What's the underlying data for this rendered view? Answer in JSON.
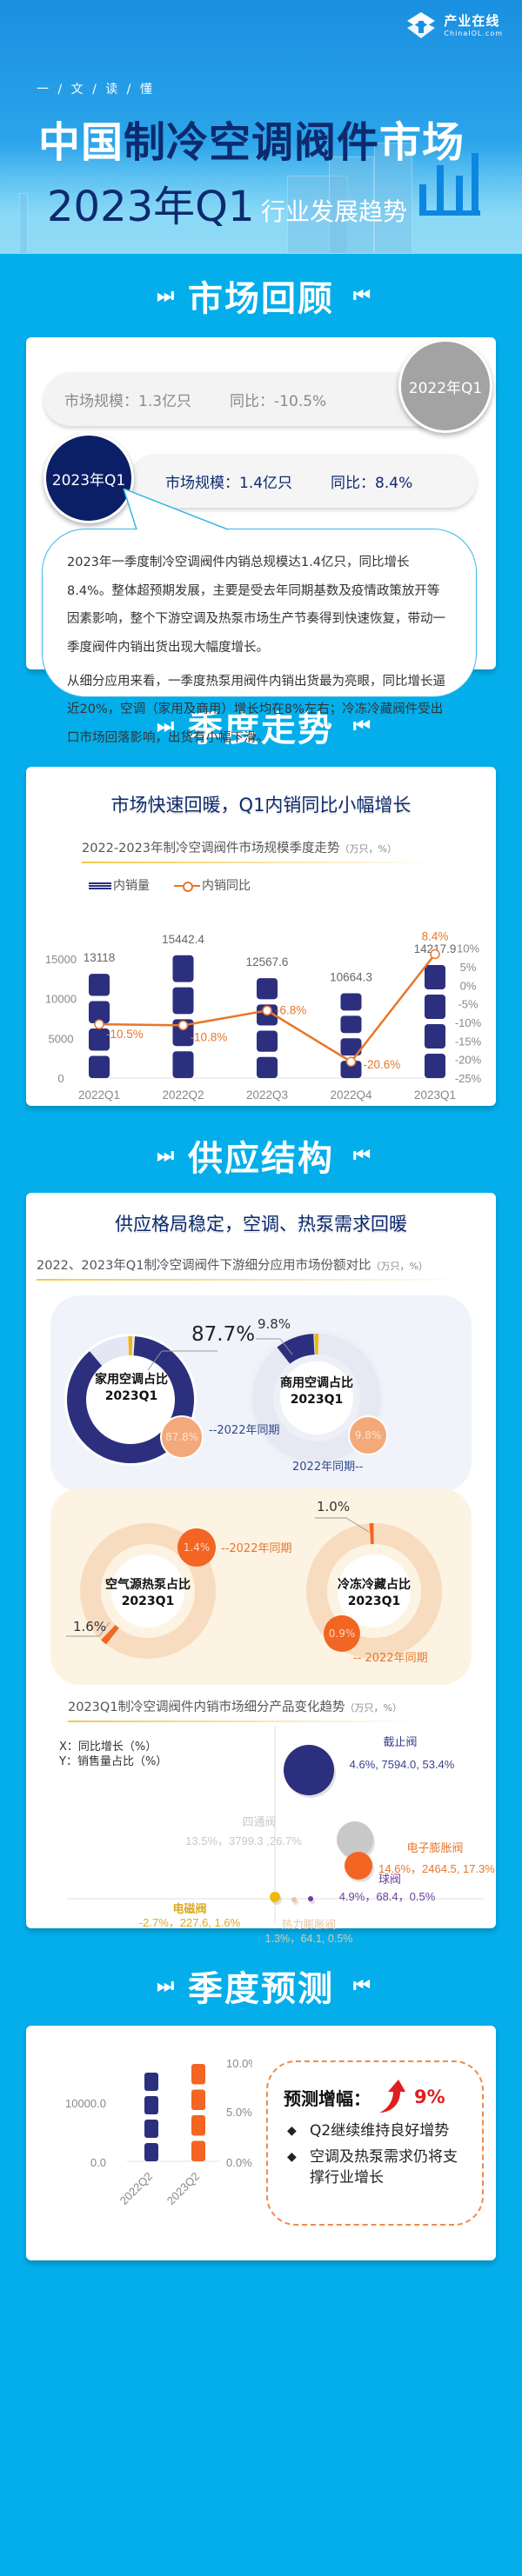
{
  "header": {
    "logo_cn": "产业在线",
    "logo_en": "ChinaIOL.com",
    "kicker": "一 / 文 / 读 / 懂",
    "title_prefix": "中国",
    "title_highlight": "制冷空调阀件",
    "title_suffix": "市场",
    "title_line2": "2023年Q1",
    "title_line2_sub": "行业发展趋势"
  },
  "sections": {
    "review": "市场回顾",
    "quarterly": "季度走势",
    "supply": "供应结构",
    "forecast": "季度预测",
    "arrow_left": "⏭",
    "arrow_right": "⏮"
  },
  "review": {
    "prev": {
      "badge": "2022年Q1",
      "size_label": "市场规模：1.3亿只",
      "yoy_label": "同比：-10.5%"
    },
    "curr": {
      "badge": "2023年Q1",
      "size_label": "市场规模：1.4亿只",
      "yoy_label": "同比：8.4%"
    },
    "paragraphs": [
      "2023年一季度制冷空调阀件内销总规模达1.4亿只，同比增长8.4%。整体超预期发展，主要是受去年同期基数及疫情政策放开等因素影响，整个下游空调及热泵市场生产节奏得到快速恢复，带动一季度阀件内销出货出现大幅度增长。",
      "从细分应用来看，一季度热泵用阀件内销出货最为亮眼，同比增长逼近20%，空调（家用及商用）增长均在8%左右；冷冻冷藏阀件受出口市场回落影响，出货有小幅下滑。"
    ]
  },
  "quarterly": {
    "subtitle": "市场快速回暖，Q1内销同比小幅增长",
    "chart_title": "2022-2023年制冷空调阀件市场规模季度走势",
    "chart_unit": "（万只，%）",
    "legend_bar": "内销量",
    "legend_line": "内销同比"
  },
  "supply": {
    "subtitle": "供应格局稳定，空调、热泵需求回暖",
    "share_title": "2022、2023年Q1制冷空调阀件下游细分应用市场份额对比",
    "share_unit": "（万只，%）",
    "prev_label_right": "--2022年同期",
    "prev_label_left": "2022年同期--",
    "prev_label_right2": "-- 2022年同期",
    "donuts": [
      {
        "name": "家用空调占比",
        "period": "2023Q1",
        "value": "87.7%",
        "prev": "87.8%"
      },
      {
        "name": "商用空调占比",
        "period": "2023Q1",
        "value": "9.8%",
        "prev": "9.8%"
      },
      {
        "name": "空气源热泵占比",
        "period": "2023Q1",
        "value": "1.6%",
        "prev": "1.4%"
      },
      {
        "name": "冷冻冷藏占比",
        "period": "2023Q1",
        "value": "1.0%",
        "prev": "0.9%"
      }
    ],
    "scatter_title": "2023Q1制冷空调阀件内销市场细分产品变化趋势",
    "scatter_unit": "（万只，%）",
    "axis_x": "X：同比增长（%）",
    "axis_y": "Y：销售量占比（%）",
    "products": [
      {
        "name": "截止阀",
        "label": "4.6%, 7594.0, 53.4%",
        "color": "#2c2f7e"
      },
      {
        "name": "四通阀",
        "label": "13.5%，3799.3 ,26.7%",
        "color": "#c8c8c8"
      },
      {
        "name": "电子膨胀阀",
        "label": "14.6%，2464.5, 17.3%",
        "color": "#f26522"
      },
      {
        "name": "球阀",
        "label": "4.9%，68.4，0.5%",
        "color": "#6a3fa0"
      },
      {
        "name": "电磁阀",
        "label": "-2.7%，227.6, 1.6%",
        "color": "#f2b705"
      },
      {
        "name": "热力膨胀阀",
        "label": "1.3%，64.1, 0.5%",
        "color": "#e8c4a0"
      }
    ]
  },
  "forecast": {
    "head": "预测增幅：",
    "pct": "9%",
    "bullets": [
      "Q2继续维持良好增势",
      "空调及热泵需求仍将支撑行业增长"
    ],
    "bullet_symbol": "◆"
  },
  "chart_data": [
    {
      "type": "bar",
      "title": "2022-2023年制冷空调阀件市场规模季度走势（万只，%）",
      "categories": [
        "2022Q1",
        "2022Q2",
        "2022Q3",
        "2022Q4",
        "2023Q1"
      ],
      "series": [
        {
          "name": "内销量",
          "type": "bar",
          "axis": "left",
          "values": [
            13118,
            15442.4,
            12567.6,
            10664.3,
            14217.9
          ]
        },
        {
          "name": "内销同比",
          "type": "line",
          "axis": "right",
          "values": [
            -10.5,
            -10.8,
            -6.8,
            -20.6,
            8.4
          ],
          "unit": "%"
        }
      ],
      "yticks_left": [
        0,
        5000,
        10000,
        15000
      ],
      "yticks_right": [
        "-25%",
        "-20%",
        "-15%",
        "-10%",
        "-5%",
        "0%",
        "5%",
        "10%"
      ],
      "ylim_left": [
        0,
        17500
      ],
      "ylim_right": [
        -25,
        12.5
      ],
      "legend_position": "top-left"
    },
    {
      "type": "pie",
      "title": "2022、2023年Q1制冷空调阀件下游细分应用市场份额对比",
      "categories": [
        "家用空调",
        "商用空调",
        "空气源热泵",
        "冷冻冷藏"
      ],
      "series": [
        {
          "name": "2023Q1",
          "values": [
            87.7,
            9.8,
            1.6,
            1.0
          ]
        },
        {
          "name": "2022Q1",
          "values": [
            87.8,
            9.8,
            1.4,
            0.9
          ]
        }
      ]
    },
    {
      "type": "scatter",
      "title": "2023Q1制冷空调阀件内销市场细分产品变化趋势（万只，%）",
      "xlabel": "同比增长（%）",
      "ylabel": "销售量占比（%）",
      "points": [
        {
          "name": "截止阀",
          "x": 4.6,
          "volume": 7594.0,
          "y": 53.4
        },
        {
          "name": "四通阀",
          "x": 13.5,
          "volume": 3799.3,
          "y": 26.7
        },
        {
          "name": "电子膨胀阀",
          "x": 14.6,
          "volume": 2464.5,
          "y": 17.3
        },
        {
          "name": "球阀",
          "x": 4.9,
          "volume": 68.4,
          "y": 0.5
        },
        {
          "name": "电磁阀",
          "x": -2.7,
          "volume": 227.6,
          "y": 1.6
        },
        {
          "name": "热力膨胀阀",
          "x": 1.3,
          "volume": 64.1,
          "y": 0.5
        }
      ]
    },
    {
      "type": "bar",
      "title": "季度预测",
      "categories": [
        "2022Q2",
        "2023Q2"
      ],
      "yticks_left": [
        "0.0",
        "10000.0"
      ],
      "yticks_right": [
        "0.0%",
        "5.0%",
        "10.0%"
      ],
      "series": [
        {
          "name": "2022Q2",
          "values": [
            15442.4
          ]
        },
        {
          "name": "2023Q2",
          "values": [
            16832
          ]
        }
      ],
      "annotation": "预测增幅：9%"
    }
  ]
}
